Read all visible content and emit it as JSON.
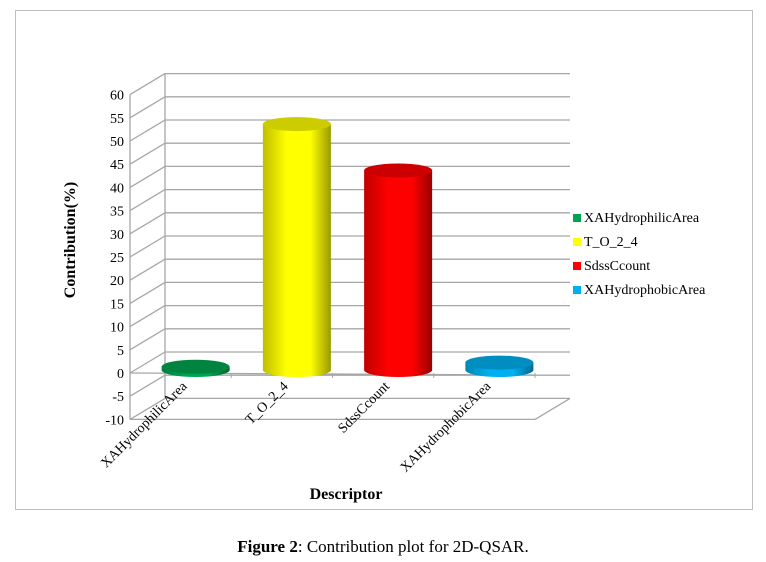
{
  "chart_data": {
    "type": "bar",
    "style": "3d-cylinder",
    "categories": [
      "XAHydrophilicArea",
      "T_O_2_4",
      "SdssCcount",
      "XAHydrophobicArea"
    ],
    "series": [
      {
        "name": "XAHydrophilicArea",
        "values": [
          0.7,
          null,
          null,
          null
        ],
        "color": "#00a550"
      },
      {
        "name": "T_O_2_4",
        "values": [
          null,
          53,
          null,
          null
        ],
        "color": "#ffff00"
      },
      {
        "name": "SdssCcount",
        "values": [
          null,
          null,
          43,
          null
        ],
        "color": "#ff0000"
      },
      {
        "name": "XAHydrophobicArea",
        "values": [
          null,
          null,
          null,
          1.6
        ],
        "color": "#00b0f0"
      }
    ],
    "xlabel": "Descriptor",
    "ylabel": "Contribution(%)",
    "ylim": [
      -10,
      60
    ],
    "yticks": [
      "-10",
      "-5",
      "0",
      "5",
      "10",
      "15",
      "20",
      "25",
      "30",
      "35",
      "40",
      "45",
      "50",
      "55",
      "60"
    ],
    "grid": true,
    "legend": "right"
  },
  "caption": {
    "label": "Figure 2",
    "text": ": Contribution plot for 2D-QSAR."
  }
}
